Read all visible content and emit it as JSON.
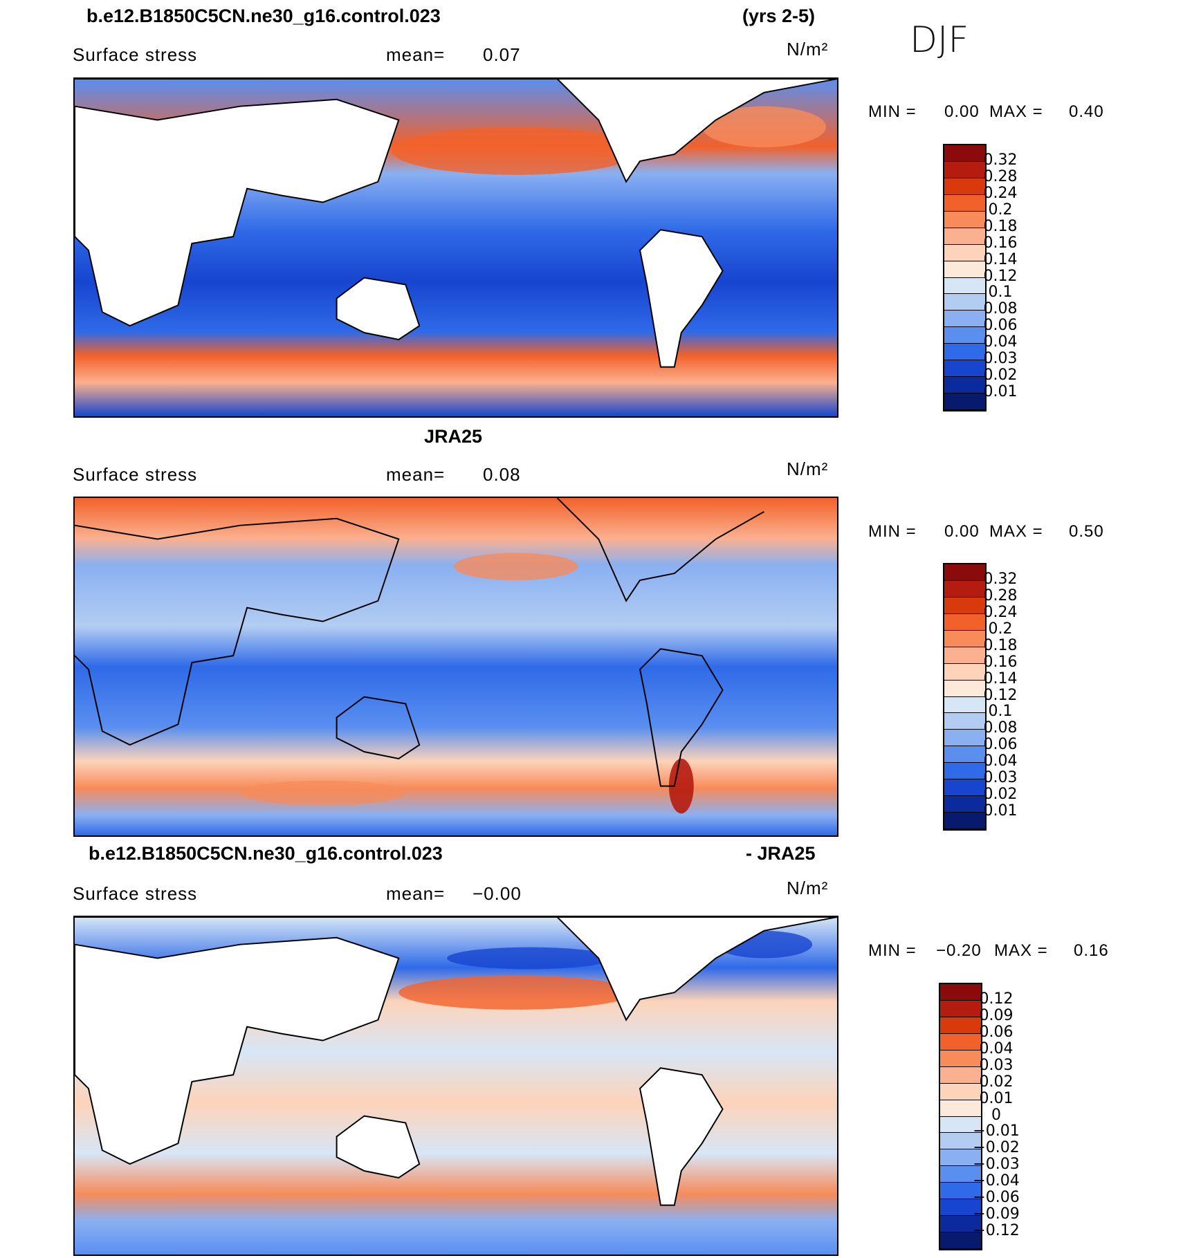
{
  "header": {
    "case_name": "b.e12.B1850C5CN.ne30_g16.control.023",
    "years": "(yrs 2-5)",
    "season": "DJF"
  },
  "panels": [
    {
      "title_left": "b.e12.B1850C5CN.ne30_g16.control.023",
      "title_center": "",
      "title_right": "(yrs 2-5)",
      "variable": "Surface stress",
      "mean_label": "mean=",
      "mean_value": "0.07",
      "units": "N/m²",
      "min_label": "MIN =",
      "min_value": "0.00",
      "max_label": "MAX =",
      "max_value": "0.40",
      "colorbar": {
        "colors": [
          "#8b0b0b",
          "#b51c10",
          "#d93a0c",
          "#f2612a",
          "#f78b5a",
          "#fbb08f",
          "#fdd3b9",
          "#fde9d9",
          "#d7e6f6",
          "#b3cdf2",
          "#8ab0f2",
          "#5a8ff0",
          "#2f6ae8",
          "#1745cf",
          "#0b2a9e",
          "#071a6e"
        ],
        "ticks": [
          "0.32",
          "0.28",
          "0.24",
          "0.2",
          "0.18",
          "0.16",
          "0.14",
          "0.12",
          "0.1",
          "0.08",
          "0.06",
          "0.04",
          "0.03",
          "0.02",
          "0.01"
        ]
      }
    },
    {
      "title_left": "",
      "title_center": "JRA25",
      "title_right": "",
      "variable": "Surface stress",
      "mean_label": "mean=",
      "mean_value": "0.08",
      "units": "N/m²",
      "min_label": "MIN =",
      "min_value": "0.00",
      "max_label": "MAX =",
      "max_value": "0.50",
      "colorbar": {
        "colors": [
          "#8b0b0b",
          "#b51c10",
          "#d93a0c",
          "#f2612a",
          "#f78b5a",
          "#fbb08f",
          "#fdd3b9",
          "#fde9d9",
          "#d7e6f6",
          "#b3cdf2",
          "#8ab0f2",
          "#5a8ff0",
          "#2f6ae8",
          "#1745cf",
          "#0b2a9e",
          "#071a6e"
        ],
        "ticks": [
          "0.32",
          "0.28",
          "0.24",
          "0.2",
          "0.18",
          "0.16",
          "0.14",
          "0.12",
          "0.1",
          "0.08",
          "0.06",
          "0.04",
          "0.03",
          "0.02",
          "0.01"
        ]
      }
    },
    {
      "title_left": "b.e12.B1850C5CN.ne30_g16.control.023",
      "title_center": "",
      "title_right": "- JRA25",
      "variable": "Surface stress",
      "mean_label": "mean=",
      "mean_value": "−0.00",
      "units": "N/m²",
      "min_label": "MIN =",
      "min_value": "−0.20",
      "max_label": "MAX =",
      "max_value": "0.16",
      "colorbar": {
        "colors": [
          "#8b0b0b",
          "#b51c10",
          "#d93a0c",
          "#f2612a",
          "#f78b5a",
          "#fbb08f",
          "#fdd3b9",
          "#fde9d9",
          "#d7e6f6",
          "#b3cdf2",
          "#8ab0f2",
          "#5a8ff0",
          "#2f6ae8",
          "#1745cf",
          "#0b2a9e",
          "#071a6e"
        ],
        "ticks": [
          "0.12",
          "0.09",
          "0.06",
          "0.04",
          "0.03",
          "0.02",
          "0.01",
          "0",
          "−0.01",
          "−0.02",
          "−0.03",
          "−0.04",
          "−0.06",
          "−0.09",
          "−0.12"
        ]
      }
    }
  ],
  "colors": {
    "land": "#ffffff",
    "coastline": "#000000"
  }
}
